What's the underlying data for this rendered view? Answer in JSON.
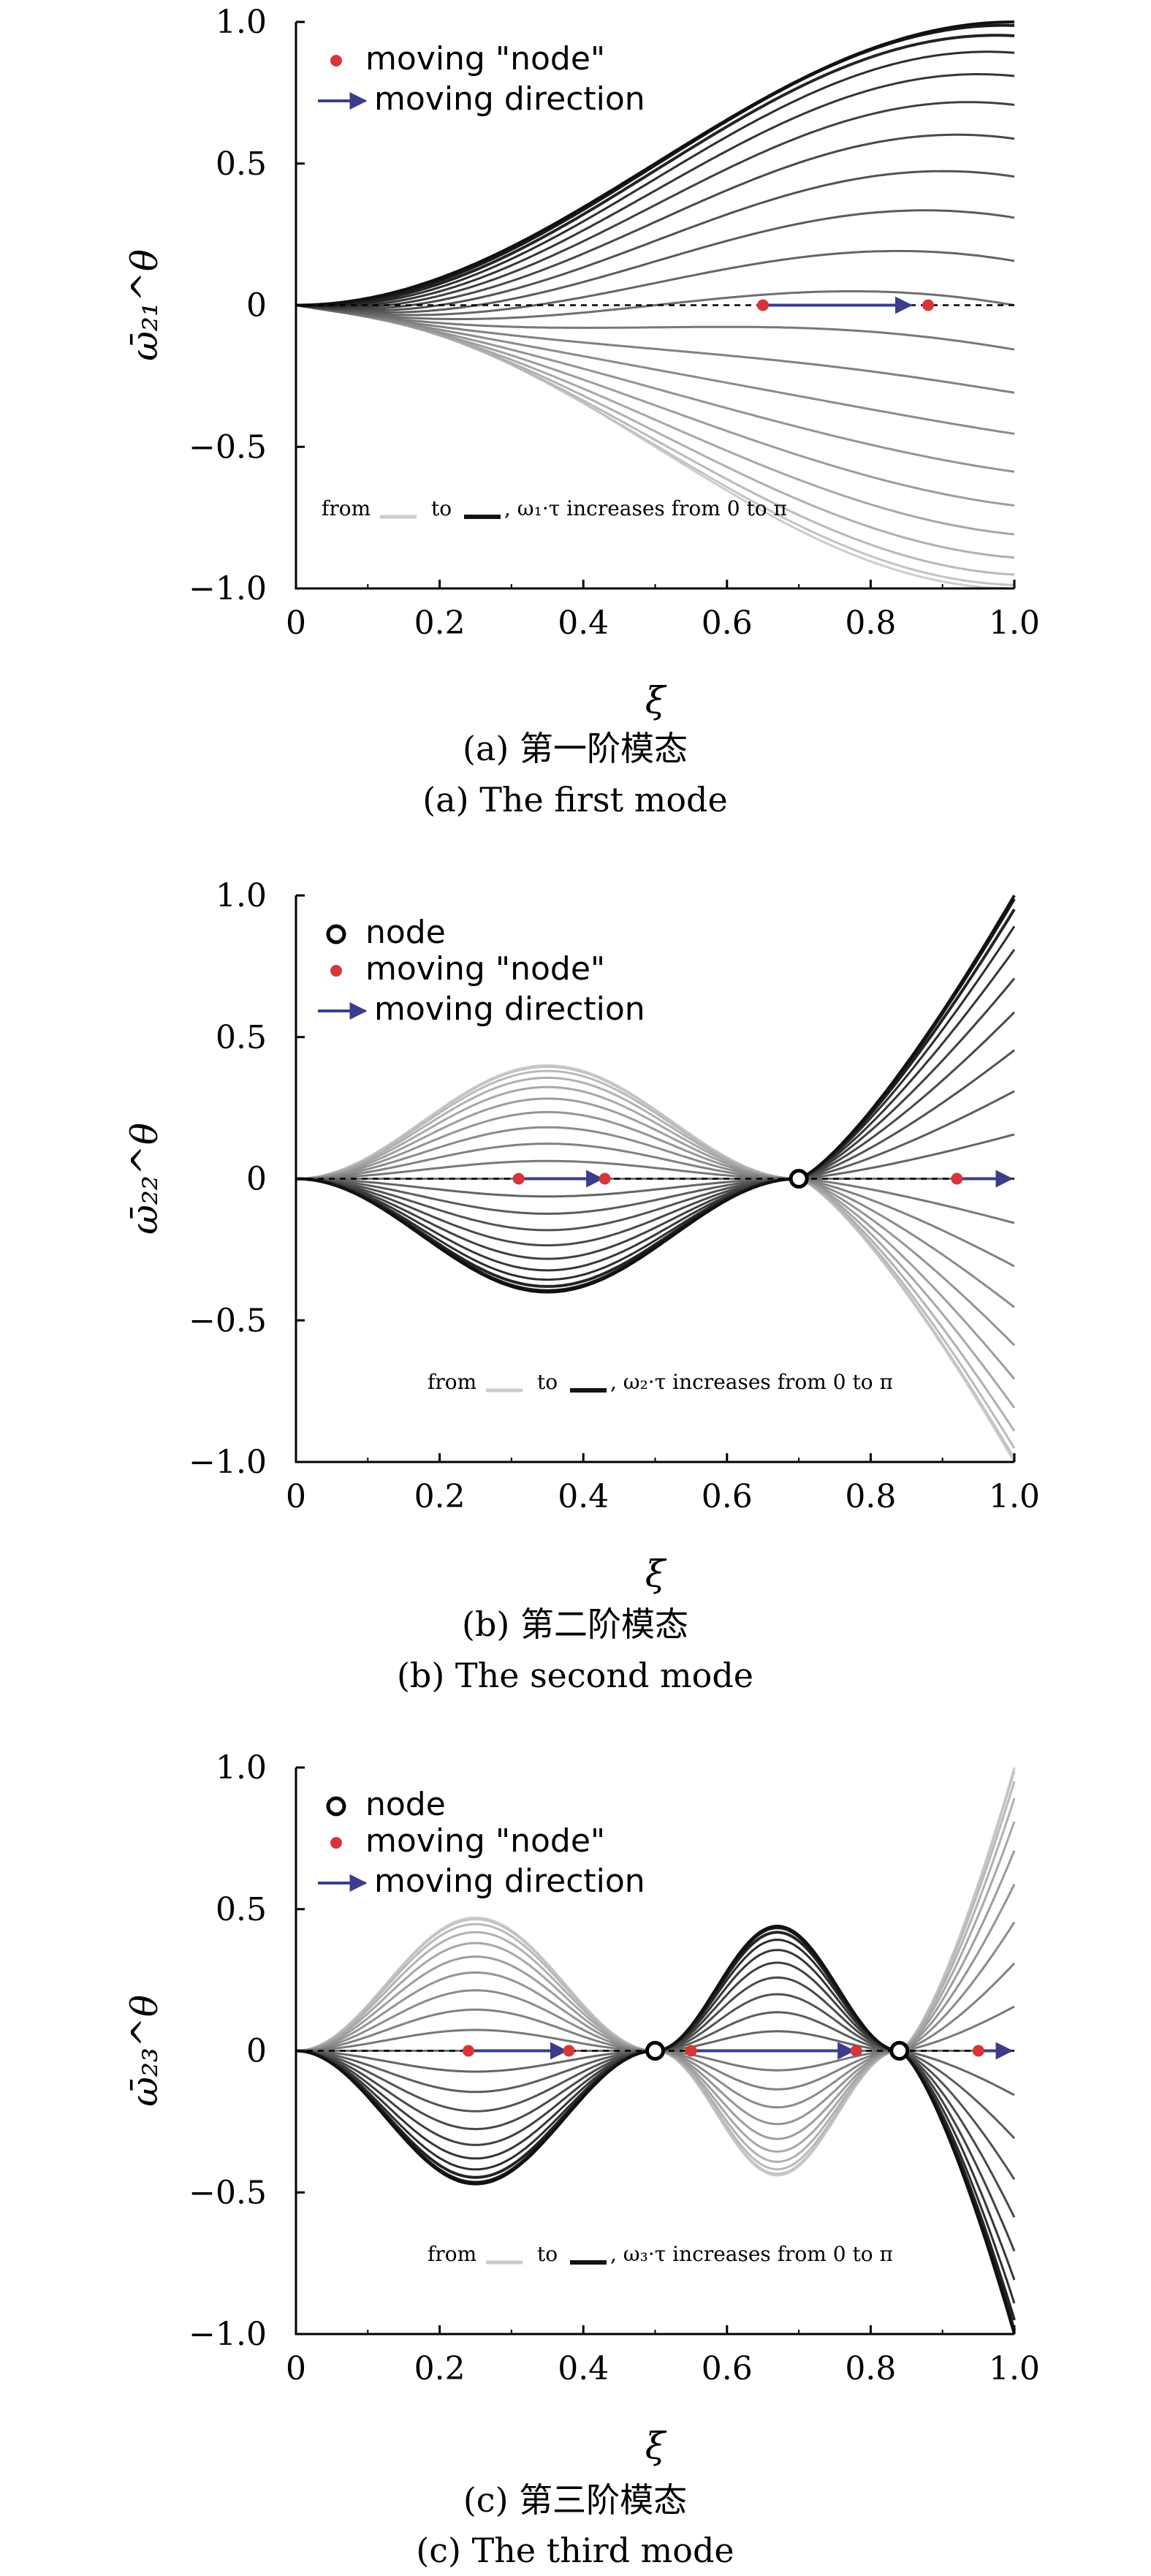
{
  "chart_data": [
    {
      "type": "line",
      "panel": "a",
      "xlabel": "ξ",
      "ylabel": "ω̄₂₁^θ",
      "xlim": [
        0,
        1.0
      ],
      "ylim": [
        -1.0,
        1.0
      ],
      "xticks": [
        "0",
        "0.2",
        "0.4",
        "0.6",
        "0.8",
        "1.0"
      ],
      "yticks": [
        "1.0",
        "0.5",
        "0",
        "−0.5",
        "−1.0"
      ],
      "legend": {
        "moving_node": "moving \"node\"",
        "direction": "moving direction",
        "placement": "top-left"
      },
      "annotation": {
        "from": "from",
        "to": "to",
        "text": ", ω₁·τ increases from 0 to π"
      },
      "caption_cn": "(a) 第一阶模态",
      "caption_en": "(a) The first mode",
      "mode": 1,
      "node_xi": [],
      "moving_nodes_xi": [
        0.65,
        0.88
      ],
      "arrow": [
        [
          0.65,
          0.86
        ]
      ],
      "curve_count": 21
    },
    {
      "type": "line",
      "panel": "b",
      "xlabel": "ξ",
      "ylabel": "ω̄₂₂^θ",
      "xlim": [
        0,
        1.0
      ],
      "ylim": [
        -1.0,
        1.0
      ],
      "xticks": [
        "0",
        "0.2",
        "0.4",
        "0.6",
        "0.8",
        "1.0"
      ],
      "yticks": [
        "1.0",
        "0.5",
        "0",
        "−0.5",
        "−1.0"
      ],
      "legend": {
        "node": "node",
        "moving_node": "moving \"node\"",
        "direction": "moving direction",
        "placement": "top-left"
      },
      "annotation": {
        "from": "from",
        "to": "to",
        "text": ", ω₂·τ increases from 0 to π"
      },
      "caption_cn": "(b) 第二阶模态",
      "caption_en": "(b) The second mode",
      "mode": 2,
      "node_xi": [
        0.7
      ],
      "moving_nodes_xi": [
        0.31,
        0.43,
        0.92
      ],
      "arrow": [
        [
          0.31,
          0.43
        ],
        [
          0.92,
          1.0
        ]
      ],
      "curve_count": 21
    },
    {
      "type": "line",
      "panel": "c",
      "xlabel": "ξ",
      "ylabel": "ω̄₂₃^θ",
      "xlim": [
        0,
        1.0
      ],
      "ylim": [
        -1.0,
        1.0
      ],
      "xticks": [
        "0",
        "0.2",
        "0.4",
        "0.6",
        "0.8",
        "1.0"
      ],
      "yticks": [
        "1.0",
        "0.5",
        "0",
        "−0.5",
        "−1.0"
      ],
      "legend": {
        "node": "node",
        "moving_node": "moving \"node\"",
        "direction": "moving direction",
        "placement": "top-left"
      },
      "annotation": {
        "from": "from",
        "to": "to",
        "text": ", ω₃·τ increases from 0 to π"
      },
      "caption_cn": "(c) 第三阶模态",
      "caption_en": "(c) The third mode",
      "mode": 3,
      "node_xi": [
        0.5,
        0.84
      ],
      "moving_nodes_xi": [
        0.24,
        0.38,
        0.55,
        0.78,
        0.95
      ],
      "arrow": [
        [
          0.24,
          0.38
        ],
        [
          0.55,
          0.78
        ],
        [
          0.95,
          1.0
        ]
      ],
      "curve_count": 21
    }
  ],
  "colors": {
    "light": "#cccccc",
    "dark": "#111111",
    "moving_node": "#d8353a",
    "arrow": "#3c3c8c"
  }
}
